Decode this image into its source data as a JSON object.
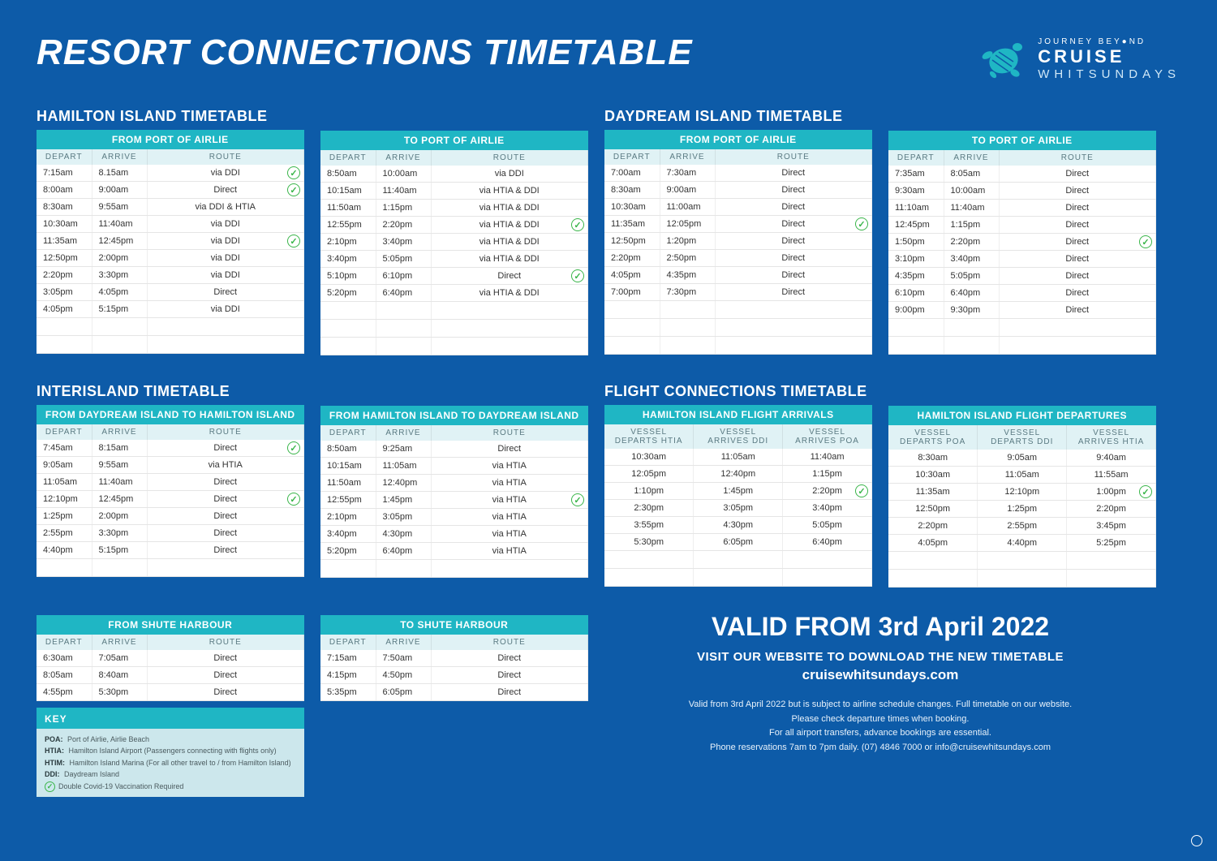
{
  "colors": {
    "bg": "#0d5ba8",
    "tableTitle": "#1fb6c4",
    "tableHdr": "#e0f2f5",
    "check": "#3ab54a"
  },
  "header": {
    "title": "RESORT CONNECTIONS TIMETABLE",
    "logo": {
      "line1": "JOURNEY BEY●ND",
      "line2": "CRUISE",
      "line3": "WHITSUNDAYS"
    }
  },
  "sections": {
    "hamilton": "HAMILTON ISLAND TIMETABLE",
    "daydream": "DAYDREAM ISLAND TIMETABLE",
    "interisland": "INTERISLAND TIMETABLE",
    "flight": "FLIGHT CONNECTIONS TIMETABLE"
  },
  "col_headers": {
    "depart": "DEPART",
    "arrive": "ARRIVE",
    "route": "ROUTE"
  },
  "tables": {
    "ham_from": {
      "title": "FROM PORT OF AIRLIE",
      "cols": 3,
      "empty": 2,
      "rows": [
        {
          "d": "7:15am",
          "a": "8.15am",
          "r": "via DDI",
          "check": true
        },
        {
          "d": "8:00am",
          "a": "9:00am",
          "r": "Direct",
          "check": true
        },
        {
          "d": "8:30am",
          "a": "9:55am",
          "r": "via DDI & HTIA"
        },
        {
          "d": "10:30am",
          "a": "11:40am",
          "r": "via DDI"
        },
        {
          "d": "11:35am",
          "a": "12:45pm",
          "r": "via DDI",
          "check": true
        },
        {
          "d": "12:50pm",
          "a": "2:00pm",
          "r": "via DDI"
        },
        {
          "d": "2:20pm",
          "a": "3:30pm",
          "r": "via DDI"
        },
        {
          "d": "3:05pm",
          "a": "4:05pm",
          "r": "Direct"
        },
        {
          "d": "4:05pm",
          "a": "5:15pm",
          "r": "via DDI"
        }
      ]
    },
    "ham_to": {
      "title": "TO PORT OF AIRLIE",
      "cols": 3,
      "empty": 3,
      "rows": [
        {
          "d": "8:50am",
          "a": "10:00am",
          "r": "via DDI"
        },
        {
          "d": "10:15am",
          "a": "11:40am",
          "r": "via HTIA & DDI"
        },
        {
          "d": "11:50am",
          "a": "1:15pm",
          "r": "via HTIA & DDI"
        },
        {
          "d": "12:55pm",
          "a": "2:20pm",
          "r": "via HTIA & DDI",
          "check": true
        },
        {
          "d": "2:10pm",
          "a": "3:40pm",
          "r": "via HTIA & DDI"
        },
        {
          "d": "3:40pm",
          "a": "5:05pm",
          "r": "via HTIA & DDI"
        },
        {
          "d": "5:10pm",
          "a": "6:10pm",
          "r": "Direct",
          "check": true
        },
        {
          "d": "5:20pm",
          "a": "6:40pm",
          "r": "via HTIA & DDI"
        }
      ]
    },
    "day_from": {
      "title": "FROM PORT OF AIRLIE",
      "cols": 3,
      "empty": 3,
      "rows": [
        {
          "d": "7:00am",
          "a": "7:30am",
          "r": "Direct"
        },
        {
          "d": "8:30am",
          "a": "9:00am",
          "r": "Direct"
        },
        {
          "d": "10:30am",
          "a": "11:00am",
          "r": "Direct"
        },
        {
          "d": "11:35am",
          "a": "12:05pm",
          "r": "Direct",
          "check": true
        },
        {
          "d": "12:50pm",
          "a": "1:20pm",
          "r": "Direct"
        },
        {
          "d": "2:20pm",
          "a": "2:50pm",
          "r": "Direct"
        },
        {
          "d": "4:05pm",
          "a": "4:35pm",
          "r": "Direct"
        },
        {
          "d": "7:00pm",
          "a": "7:30pm",
          "r": "Direct"
        }
      ]
    },
    "day_to": {
      "title": "TO PORT OF AIRLIE",
      "cols": 3,
      "empty": 2,
      "rows": [
        {
          "d": "7:35am",
          "a": "8:05am",
          "r": "Direct"
        },
        {
          "d": "9:30am",
          "a": "10:00am",
          "r": "Direct"
        },
        {
          "d": "11:10am",
          "a": "11:40am",
          "r": "Direct"
        },
        {
          "d": "12:45pm",
          "a": "1:15pm",
          "r": "Direct"
        },
        {
          "d": "1:50pm",
          "a": "2:20pm",
          "r": "Direct",
          "check": true
        },
        {
          "d": "3:10pm",
          "a": "3:40pm",
          "r": "Direct"
        },
        {
          "d": "4:35pm",
          "a": "5:05pm",
          "r": "Direct"
        },
        {
          "d": "6:10pm",
          "a": "6:40pm",
          "r": "Direct"
        },
        {
          "d": "9:00pm",
          "a": "9:30pm",
          "r": "Direct"
        }
      ]
    },
    "ii_ddi_ham": {
      "title": "FROM DAYDREAM ISLAND TO HAMILTON ISLAND",
      "cols": 3,
      "empty": 1,
      "rows": [
        {
          "d": "7:45am",
          "a": "8:15am",
          "r": "Direct",
          "check": true
        },
        {
          "d": "9:05am",
          "a": "9:55am",
          "r": "via HTIA"
        },
        {
          "d": "11:05am",
          "a": "11:40am",
          "r": "Direct"
        },
        {
          "d": "12:10pm",
          "a": "12:45pm",
          "r": "Direct",
          "check": true
        },
        {
          "d": "1:25pm",
          "a": "2:00pm",
          "r": "Direct"
        },
        {
          "d": "2:55pm",
          "a": "3:30pm",
          "r": "Direct"
        },
        {
          "d": "4:40pm",
          "a": "5:15pm",
          "r": "Direct"
        }
      ]
    },
    "ii_ham_ddi": {
      "title": "FROM HAMILTON ISLAND TO DAYDREAM ISLAND",
      "cols": 3,
      "empty": 1,
      "rows": [
        {
          "d": "8:50am",
          "a": "9:25am",
          "r": "Direct"
        },
        {
          "d": "10:15am",
          "a": "11:05am",
          "r": "via HTIA"
        },
        {
          "d": "11:50am",
          "a": "12:40pm",
          "r": "via HTIA"
        },
        {
          "d": "12:55pm",
          "a": "1:45pm",
          "r": "via HTIA",
          "check": true
        },
        {
          "d": "2:10pm",
          "a": "3:05pm",
          "r": "via HTIA"
        },
        {
          "d": "3:40pm",
          "a": "4:30pm",
          "r": "via HTIA"
        },
        {
          "d": "5:20pm",
          "a": "6:40pm",
          "r": "via HTIA"
        }
      ]
    },
    "ii_from_sh": {
      "title": "FROM SHUTE HARBOUR",
      "cols": 3,
      "empty": 0,
      "rows": [
        {
          "d": "6:30am",
          "a": "7:05am",
          "r": "Direct"
        },
        {
          "d": "8:05am",
          "a": "8:40am",
          "r": "Direct"
        },
        {
          "d": "4:55pm",
          "a": "5:30pm",
          "r": "Direct"
        }
      ]
    },
    "ii_to_sh": {
      "title": "TO SHUTE HARBOUR",
      "cols": 3,
      "empty": 0,
      "rows": [
        {
          "d": "7:15am",
          "a": "7:50am",
          "r": "Direct"
        },
        {
          "d": "4:15pm",
          "a": "4:50pm",
          "r": "Direct"
        },
        {
          "d": "5:35pm",
          "a": "6:05pm",
          "r": "Direct"
        }
      ]
    },
    "fc_arr": {
      "title": "HAMILTON ISLAND FLIGHT ARRIVALS",
      "headers": [
        "VESSEL DEPARTS HTIA",
        "VESSEL ARRIVES DDI",
        "VESSEL ARRIVES POA"
      ],
      "empty": 2,
      "rows": [
        {
          "c": [
            "10:30am",
            "11:05am",
            "11:40am"
          ]
        },
        {
          "c": [
            "12:05pm",
            "12:40pm",
            "1:15pm"
          ]
        },
        {
          "c": [
            "1:10pm",
            "1:45pm",
            "2:20pm"
          ],
          "check": true
        },
        {
          "c": [
            "2:30pm",
            "3:05pm",
            "3:40pm"
          ]
        },
        {
          "c": [
            "3:55pm",
            "4:30pm",
            "5:05pm"
          ]
        },
        {
          "c": [
            "5:30pm",
            "6:05pm",
            "6:40pm"
          ]
        }
      ]
    },
    "fc_dep": {
      "title": "HAMILTON ISLAND FLIGHT DEPARTURES",
      "headers": [
        "VESSEL DEPARTS POA",
        "VESSEL DEPARTS DDI",
        "VESSEL ARRIVES HTIA"
      ],
      "empty": 2,
      "rows": [
        {
          "c": [
            "8:30am",
            "9:05am",
            "9:40am"
          ]
        },
        {
          "c": [
            "10:30am",
            "11:05am",
            "11:55am"
          ]
        },
        {
          "c": [
            "11:35am",
            "12:10pm",
            "1:00pm"
          ],
          "check": true
        },
        {
          "c": [
            "12:50pm",
            "1:25pm",
            "2:20pm"
          ]
        },
        {
          "c": [
            "2:20pm",
            "2:55pm",
            "3:45pm"
          ]
        },
        {
          "c": [
            "4:05pm",
            "4:40pm",
            "5:25pm"
          ]
        }
      ]
    }
  },
  "footer": {
    "valid_title": "VALID FROM 3rd April 2022",
    "valid_sub": "VISIT OUR WEBSITE TO DOWNLOAD THE NEW TIMETABLE",
    "site": "cruisewhitsundays.com",
    "lines": [
      "Valid from 3rd April 2022 but is subject to airline schedule changes. Full timetable on our website.",
      "Please check departure times when booking.",
      "For all airport transfers, advance bookings are essential.",
      "Phone reservations 7am to 7pm daily. (07) 4846 7000 or info@cruisewhitsundays.com"
    ]
  },
  "key": {
    "title": "KEY",
    "items": [
      {
        "k": "POA:",
        "v": "Port of Airlie, Airlie Beach"
      },
      {
        "k": "HTIA:",
        "v": "Hamilton Island Airport (Passengers connecting with flights only)"
      },
      {
        "k": "HTIM:",
        "v": "Hamilton Island Marina (For all other travel to / from Hamilton Island)"
      },
      {
        "k": "DDI:",
        "v": "Daydream Island"
      }
    ],
    "check_label": "Double Covid-19 Vaccination Required"
  }
}
